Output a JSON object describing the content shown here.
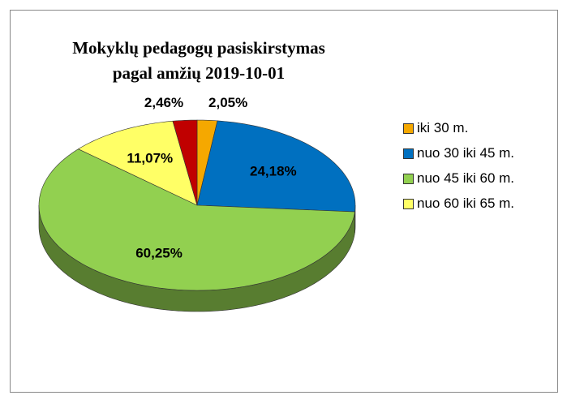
{
  "chart_data": {
    "type": "pie",
    "title": "Mokyklų pedagogų pasiskirstymas pagal amžių 2019-10-01",
    "categories": [
      "iki 30 m.",
      "nuo 30 iki 45 m.",
      "nuo 45 iki 60 m.",
      "nuo 60 iki 65 m.",
      null
    ],
    "values": [
      2.05,
      24.18,
      60.25,
      11.07,
      2.46
    ],
    "value_labels": [
      "2,05%",
      "24,18%",
      "60,25%",
      "11,07%",
      "2,46%"
    ],
    "colors": [
      "#f5a800",
      "#0070c0",
      "#92d050",
      "#ffff66",
      "#c00000"
    ],
    "legend": "right"
  }
}
